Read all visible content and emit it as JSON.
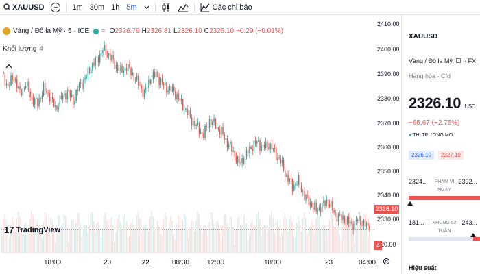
{
  "toolbar": {
    "symbol": "XAUUSD",
    "intervals": [
      "1m",
      "30m",
      "1h",
      "5m"
    ],
    "active_interval": "5m",
    "indicators_label": "Các chỉ báo"
  },
  "legend": {
    "name": "Vàng / Đô la Mỹ · 5 · ICE",
    "eq_icon": "≈",
    "open_k": "O",
    "open_v": "2326.79",
    "high_k": "H",
    "high_v": "2326.81",
    "low_k": "L",
    "low_v": "2326.10",
    "close_k": "C",
    "close_v": "2326.10",
    "change": "−0.29 (−0.01%)"
  },
  "volume_legend": {
    "label": "Khối lượng",
    "value": "4"
  },
  "logo": {
    "text": "TradingView",
    "mark": "17"
  },
  "price_axis": [
    "2410.00",
    "2400.00",
    "2390.00",
    "2380.00",
    "2370.00",
    "2360.00",
    "2350.00",
    "2340.00",
    "2330.00",
    "120.00"
  ],
  "last_price_tag": "2326.10",
  "last_vol_tag": "4",
  "time_axis": [
    {
      "label": "18:00",
      "bold": false
    },
    {
      "label": "20",
      "bold": false
    },
    {
      "label": "22",
      "bold": true
    },
    {
      "label": "08:30",
      "bold": false
    },
    {
      "label": "12:00",
      "bold": false
    },
    {
      "label": "18:00",
      "bold": false
    },
    {
      "label": "23",
      "bold": false
    },
    {
      "label": "04:00",
      "bold": false
    }
  ],
  "chart_data": {
    "type": "line",
    "ylim": [
      2320,
      2412
    ],
    "series_close": [
      2390,
      2385,
      2389,
      2382,
      2386,
      2380,
      2378,
      2384,
      2381,
      2376,
      2380,
      2383,
      2379,
      2385,
      2388,
      2393,
      2396,
      2400,
      2398,
      2394,
      2391,
      2393,
      2390,
      2386,
      2382,
      2388,
      2390,
      2386,
      2384,
      2383,
      2379,
      2375,
      2371,
      2368,
      2365,
      2371,
      2369,
      2366,
      2362,
      2358,
      2353,
      2356,
      2360,
      2362,
      2360,
      2361,
      2358,
      2354,
      2348,
      2344,
      2346,
      2340,
      2337,
      2334,
      2336,
      2338,
      2333,
      2331,
      2330,
      2328,
      2330,
      2329,
      2326
    ],
    "colors": {
      "up": "#26a69a",
      "down": "#ef5350"
    }
  },
  "panel": {
    "symbol": "XAUUSD",
    "name": "Vàng / Đô la Mỹ",
    "exchange": "FX_IDC",
    "type": "Hàng hóa · Cfd",
    "price": "2326.10",
    "currency": "USD",
    "change": "−65.67 (−2.75%)",
    "status": "THỊ TRƯỜNG MỞ",
    "bid": "2326.10",
    "ask": "2327.10",
    "day_range": {
      "low": "2324...",
      "label": "PHẠM VI NGÀY",
      "high": "2392...",
      "position": 0.02
    },
    "year_range": {
      "low": "181...",
      "label": "KHUNG 52 TUẦN",
      "high": "243...",
      "position": 0.9
    },
    "performance_label": "Hiệu suất"
  }
}
